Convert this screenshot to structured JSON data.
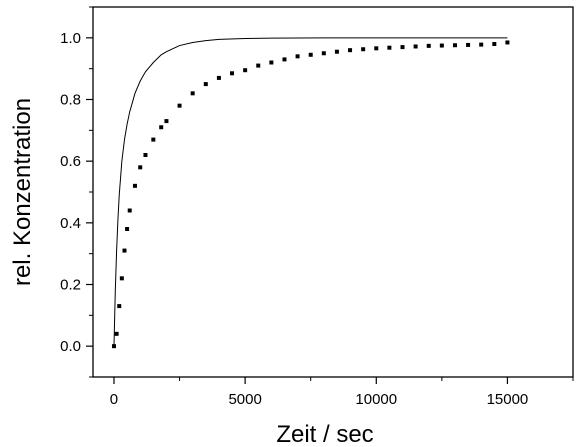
{
  "chart_data": {
    "type": "scatter",
    "title": "",
    "xlabel": "Zeit / sec",
    "ylabel": "rel. Konzentration",
    "xlim": [
      -800,
      17500
    ],
    "ylim": [
      -0.1,
      1.1
    ],
    "x_ticks": [
      0,
      5000,
      10000,
      15000
    ],
    "x_tick_labels": [
      "0",
      "5000",
      "10000",
      "15000"
    ],
    "y_ticks": [
      0.0,
      0.2,
      0.4,
      0.6,
      0.8,
      1.0
    ],
    "y_tick_labels": [
      "0.0",
      "0.2",
      "0.4",
      "0.6",
      "0.8",
      "1.0"
    ],
    "grid": false,
    "legend": "none",
    "series": [
      {
        "kind": "scatter",
        "x": [
          0,
          100,
          200,
          300,
          400,
          500,
          600,
          800,
          1000,
          1200,
          1500,
          1800,
          2000,
          2500,
          3000,
          3500,
          4000,
          4500,
          5000,
          5500,
          6000,
          6500,
          7000,
          7500,
          8000,
          8500,
          9000,
          9500,
          10000,
          10500,
          11000,
          11500,
          12000,
          12500,
          13000,
          13500,
          14000,
          14500,
          15000
        ],
        "y": [
          0.0,
          0.04,
          0.13,
          0.22,
          0.31,
          0.38,
          0.44,
          0.52,
          0.58,
          0.62,
          0.67,
          0.71,
          0.73,
          0.78,
          0.82,
          0.85,
          0.87,
          0.885,
          0.895,
          0.91,
          0.92,
          0.93,
          0.94,
          0.945,
          0.95,
          0.955,
          0.96,
          0.963,
          0.966,
          0.968,
          0.97,
          0.972,
          0.974,
          0.975,
          0.976,
          0.977,
          0.978,
          0.98,
          0.985
        ],
        "color": "#000000"
      },
      {
        "kind": "line",
        "x": [
          0,
          50,
          100,
          150,
          200,
          300,
          400,
          500,
          600,
          800,
          1000,
          1200,
          1500,
          1800,
          2000,
          2500,
          3000,
          3500,
          4000,
          5000,
          6000,
          8000,
          10000,
          12000,
          15000
        ],
        "y": [
          0.0,
          0.18,
          0.31,
          0.41,
          0.49,
          0.6,
          0.67,
          0.72,
          0.76,
          0.82,
          0.86,
          0.89,
          0.92,
          0.945,
          0.955,
          0.975,
          0.985,
          0.991,
          0.995,
          0.998,
          0.999,
          1.0,
          1.0,
          1.0,
          1.0
        ],
        "color": "#000000"
      }
    ]
  }
}
